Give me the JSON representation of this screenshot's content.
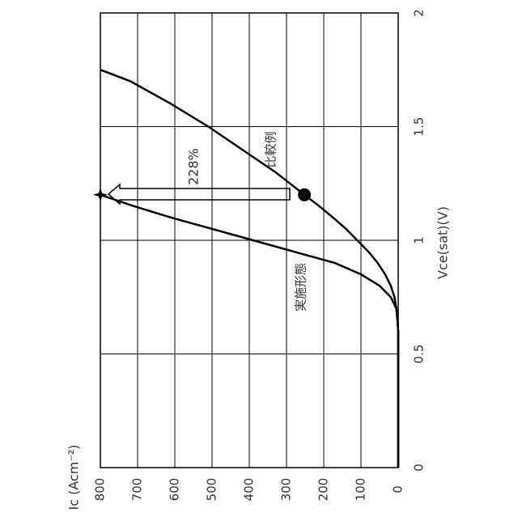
{
  "chart_data": {
    "type": "line",
    "x_label": "Vce(sat)(V)",
    "y_label": "Ic (Acm⁻²)",
    "x": [
      0,
      0.6,
      0.65,
      0.7,
      0.75,
      0.8,
      0.85,
      0.9,
      0.95,
      1.0,
      1.05,
      1.1,
      1.15,
      1.2,
      1.3,
      1.4,
      1.5,
      1.6,
      1.7,
      1.75
    ],
    "series": [
      {
        "name": "比較例",
        "color": "#000000",
        "values": [
          0,
          0,
          2,
          5,
          10,
          20,
          35,
          55,
          80,
          110,
          140,
          175,
          212,
          252,
          330,
          420,
          510,
          610,
          720,
          800
        ]
      },
      {
        "name": "実施形態",
        "color": "#000000",
        "values": [
          0,
          0,
          2,
          5,
          20,
          50,
          100,
          170,
          280,
          390,
          500,
          610,
          710,
          800,
          null,
          null,
          null,
          null,
          null,
          null
        ]
      }
    ],
    "annotation": "228%",
    "xlim": [
      0,
      2
    ],
    "xticks": [
      0,
      0.5,
      1,
      1.5,
      2
    ],
    "ylim": [
      0,
      800
    ],
    "yticks": [
      0,
      100,
      200,
      300,
      400,
      500,
      600,
      700,
      800
    ],
    "grid": true
  }
}
